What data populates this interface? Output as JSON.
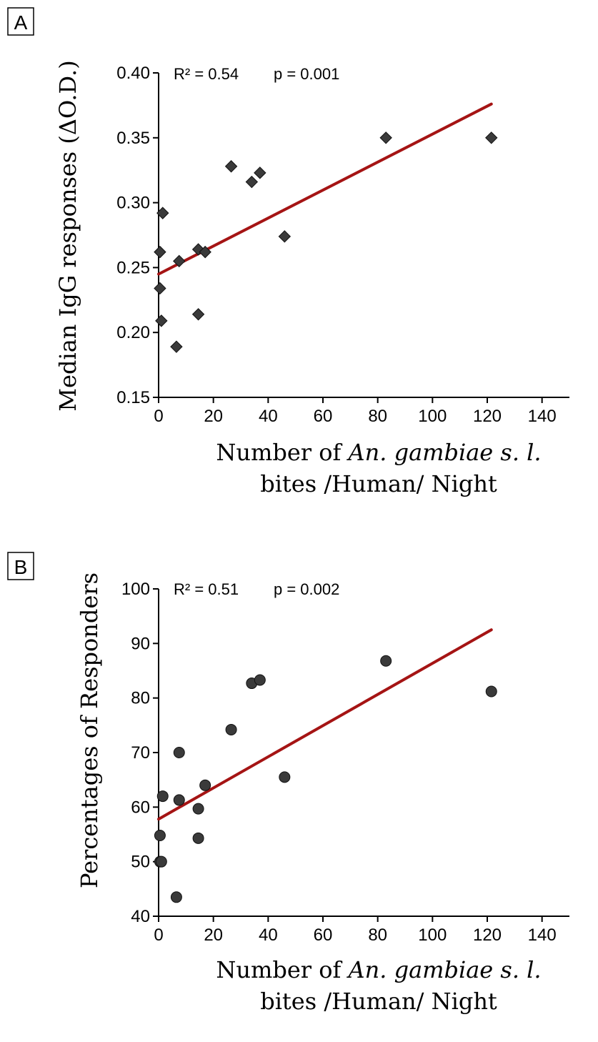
{
  "chart_data": [
    {
      "type": "scatter",
      "panel_label": "A",
      "ylabel": "Median IgG responses (ΔO.D.)",
      "xlabel_parts": [
        "Number of ",
        "An. gambiae s. l.",
        ""
      ],
      "xlabel_line2": "bites /Human/ Night",
      "stats": {
        "r2": "R² = 0.54",
        "p": "p = 0.001"
      },
      "xlim": [
        0,
        150
      ],
      "ylim": [
        0.15,
        0.4
      ],
      "xticks": [
        0,
        20,
        40,
        60,
        80,
        100,
        120,
        140
      ],
      "yticks": [
        0.15,
        0.2,
        0.25,
        0.3,
        0.35,
        0.4
      ],
      "ytick_labels": [
        "0.15",
        "0.20",
        "0.25",
        "0.30",
        "0.35",
        "0.40"
      ],
      "marker": "diamond",
      "marker_color": "#3a3a3a",
      "line_color": "#a51414",
      "points": [
        {
          "x": 0.5,
          "y": 0.262
        },
        {
          "x": 0.5,
          "y": 0.234
        },
        {
          "x": 1,
          "y": 0.209
        },
        {
          "x": 1.5,
          "y": 0.292
        },
        {
          "x": 6.5,
          "y": 0.189
        },
        {
          "x": 7.5,
          "y": 0.255
        },
        {
          "x": 14.5,
          "y": 0.214
        },
        {
          "x": 14.5,
          "y": 0.264
        },
        {
          "x": 17,
          "y": 0.262
        },
        {
          "x": 26.5,
          "y": 0.328
        },
        {
          "x": 34,
          "y": 0.316
        },
        {
          "x": 37,
          "y": 0.323
        },
        {
          "x": 46,
          "y": 0.274
        },
        {
          "x": 83,
          "y": 0.35
        },
        {
          "x": 121.5,
          "y": 0.35
        }
      ],
      "regression": {
        "x": [
          0,
          121.5
        ],
        "y": [
          0.245,
          0.376
        ]
      }
    },
    {
      "type": "scatter",
      "panel_label": "B",
      "ylabel": "Percentages of Responders",
      "xlabel_parts": [
        "Number of ",
        "An. gambiae s. l.",
        ""
      ],
      "xlabel_line2": "bites /Human/ Night",
      "stats": {
        "r2": "R² = 0.51",
        "p": "p = 0.002"
      },
      "xlim": [
        0,
        150
      ],
      "ylim": [
        40,
        100
      ],
      "xticks": [
        0,
        20,
        40,
        60,
        80,
        100,
        120,
        140
      ],
      "yticks": [
        40,
        50,
        60,
        70,
        80,
        90,
        100
      ],
      "ytick_labels": [
        "40",
        "50",
        "60",
        "70",
        "80",
        "90",
        "100"
      ],
      "marker": "circle",
      "marker_color": "#3a3a3a",
      "line_color": "#a51414",
      "points": [
        {
          "x": 0.5,
          "y": 54.8
        },
        {
          "x": 0.5,
          "y": 50
        },
        {
          "x": 1,
          "y": 50
        },
        {
          "x": 1.5,
          "y": 62
        },
        {
          "x": 6.5,
          "y": 43.5
        },
        {
          "x": 7.5,
          "y": 70
        },
        {
          "x": 7.5,
          "y": 61.3
        },
        {
          "x": 14.5,
          "y": 54.3
        },
        {
          "x": 14.5,
          "y": 59.7
        },
        {
          "x": 17,
          "y": 64
        },
        {
          "x": 26.5,
          "y": 74.2
        },
        {
          "x": 34,
          "y": 82.7
        },
        {
          "x": 37,
          "y": 83.3
        },
        {
          "x": 46,
          "y": 65.5
        },
        {
          "x": 83,
          "y": 86.8
        },
        {
          "x": 121.5,
          "y": 81.2
        }
      ],
      "regression": {
        "x": [
          0,
          121.5
        ],
        "y": [
          57.8,
          92.5
        ]
      }
    }
  ]
}
